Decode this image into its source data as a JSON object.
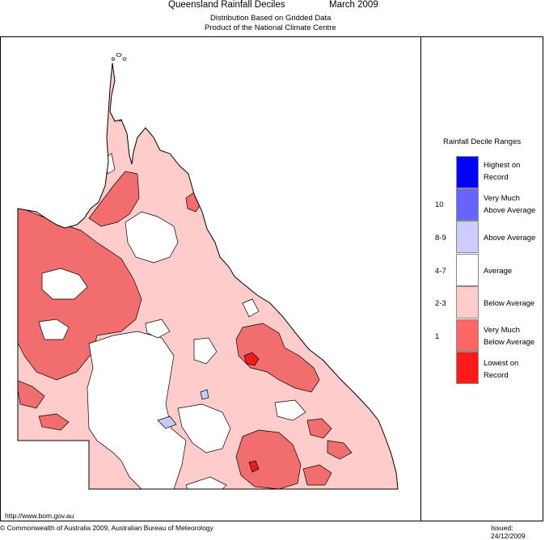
{
  "header": {
    "title": "Queensland Rainfall Deciles",
    "month": "March 2009",
    "subtitle1": "Distribution Based on Gridded Data",
    "subtitle2": "Product of the National Climate Centre"
  },
  "legend": {
    "title": "Rainfall Decile Ranges",
    "items": [
      {
        "range": "",
        "label_line1": "Highest on",
        "label_line2": "Record",
        "color": "#0000ff"
      },
      {
        "range": "10",
        "label_line1": "Very Much",
        "label_line2": "Above Average",
        "color": "#6666ff"
      },
      {
        "range": "8-9",
        "label_line1": "Above Average",
        "label_line2": "",
        "color": "#ccccff"
      },
      {
        "range": "4-7",
        "label_line1": "Average",
        "label_line2": "",
        "color": "#ffffff"
      },
      {
        "range": "2-3",
        "label_line1": "Below Average",
        "label_line2": "",
        "color": "#ffcccc"
      },
      {
        "range": "1",
        "label_line1": "Very Much",
        "label_line2": "Below Average",
        "color": "#ff6666"
      },
      {
        "range": "",
        "label_line1": "Lowest on",
        "label_line2": "Record",
        "color": "#ff1a1a"
      }
    ]
  },
  "map_colors": {
    "below_average": "#ffcccc",
    "very_much_below": "#f26d6d",
    "lowest": "#ee1c1c",
    "average": "#ffffff",
    "above_average": "#c9c9f5"
  },
  "footer": {
    "url": "http://www.bom.gov.au",
    "copyright": "© Commonwealth of Australia 2009, Australian Bureau of Meteorology",
    "issued": "Issued: 24/12/2009"
  }
}
